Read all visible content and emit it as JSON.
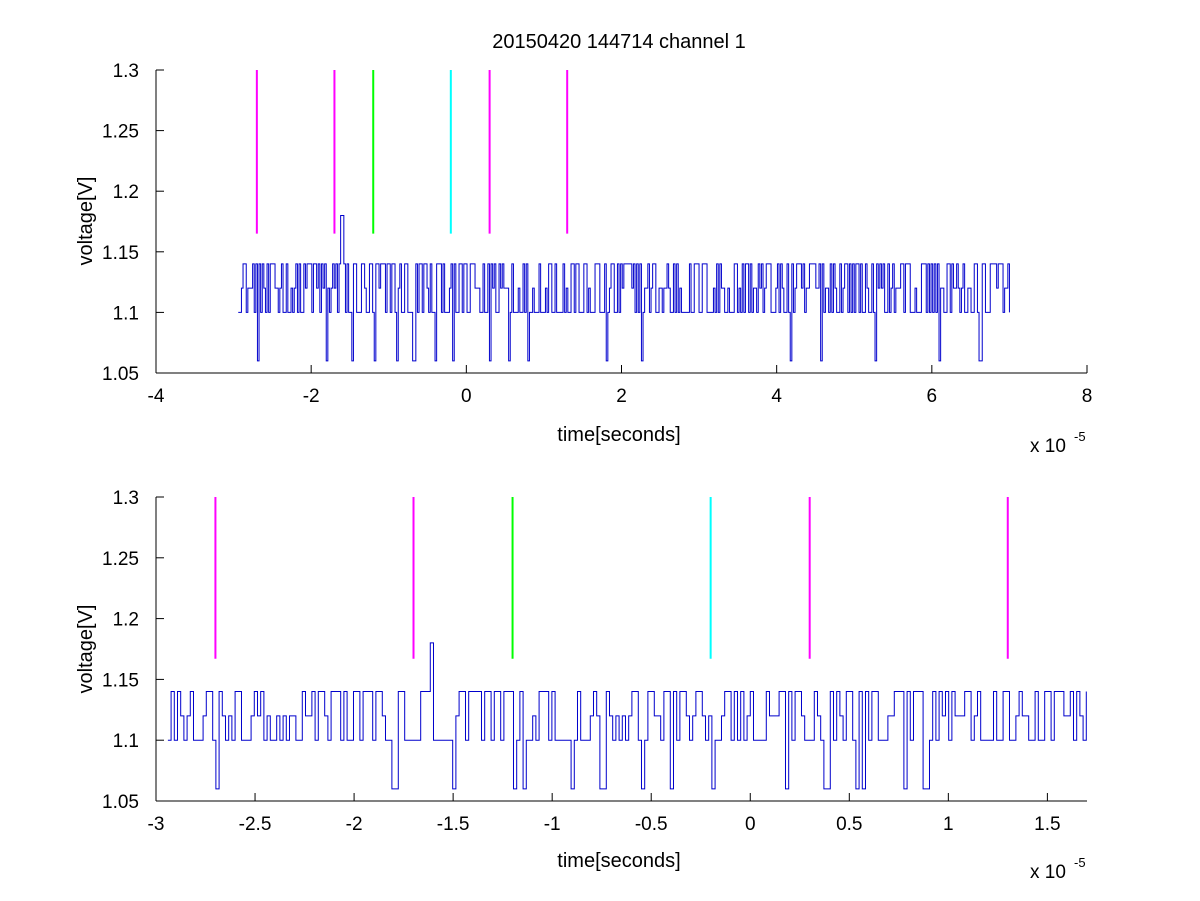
{
  "colors": {
    "background": "#ffffff",
    "signal": "#0000cc",
    "marker_magenta": "#ff00ff",
    "marker_green": "#00ff00",
    "marker_cyan": "#00ffff",
    "axes": "#000000"
  },
  "chart_data": [
    {
      "type": "line",
      "title": "20150420 144714 channel 1",
      "xlabel": "time[seconds]",
      "ylabel": "voltage[V]",
      "x_exponent_base": "x 10",
      "x_exponent_power": "-5",
      "xlim": [
        -4,
        8
      ],
      "ylim": [
        1.05,
        1.3
      ],
      "x_ticks": [
        -4,
        -2,
        0,
        2,
        4,
        6,
        8
      ],
      "x_tick_labels": [
        "-4",
        "-2",
        "0",
        "2",
        "4",
        "6",
        "8"
      ],
      "y_ticks": [
        1.05,
        1.1,
        1.15,
        1.2,
        1.25,
        1.3
      ],
      "y_tick_labels": [
        "1.05",
        "1.1",
        "1.15",
        "1.2",
        "1.25",
        "1.3"
      ],
      "grid": false,
      "series": [
        {
          "kind": "noisy-signal",
          "color": "#0000cc",
          "x_range": [
            -2.94,
            7.02
          ],
          "baseline": 1.1,
          "levels": [
            1.06,
            1.1,
            1.12,
            1.14
          ],
          "spike": {
            "x": -1.61,
            "y": 1.18
          },
          "dip_x": [
            -2.7,
            -1.8,
            -1.48,
            -1.18,
            -0.9,
            -0.68,
            -0.4,
            -0.18,
            0.3,
            0.55,
            0.8,
            1.8,
            2.25,
            4.17,
            4.57,
            5.27,
            6.1,
            6.62
          ]
        }
      ],
      "markers": [
        {
          "x": -2.7,
          "y": [
            1.165,
            1.3
          ],
          "color": "#ff00ff"
        },
        {
          "x": -1.7,
          "y": [
            1.165,
            1.3
          ],
          "color": "#ff00ff"
        },
        {
          "x": -1.2,
          "y": [
            1.165,
            1.3
          ],
          "color": "#00ff00"
        },
        {
          "x": -0.2,
          "y": [
            1.165,
            1.3
          ],
          "color": "#00ffff"
        },
        {
          "x": 0.3,
          "y": [
            1.165,
            1.3
          ],
          "color": "#ff00ff"
        },
        {
          "x": 1.3,
          "y": [
            1.165,
            1.3
          ],
          "color": "#ff00ff"
        }
      ]
    },
    {
      "type": "line",
      "title": "",
      "xlabel": "time[seconds]",
      "ylabel": "voltage[V]",
      "x_exponent_base": "x 10",
      "x_exponent_power": "-5",
      "xlim": [
        -3.0,
        1.7
      ],
      "ylim": [
        1.05,
        1.3
      ],
      "x_ticks": [
        -3,
        -2.5,
        -2,
        -1.5,
        -1,
        -0.5,
        0,
        0.5,
        1,
        1.5
      ],
      "x_tick_labels": [
        "-3",
        "-2.5",
        "-2",
        "-1.5",
        "-1",
        "-0.5",
        "0",
        "0.5",
        "1",
        "1.5"
      ],
      "y_ticks": [
        1.05,
        1.1,
        1.15,
        1.2,
        1.25,
        1.3
      ],
      "y_tick_labels": [
        "1.05",
        "1.1",
        "1.15",
        "1.2",
        "1.25",
        "1.3"
      ],
      "grid": false,
      "series": [
        {
          "kind": "noisy-signal",
          "color": "#0000cc",
          "x_range": [
            -2.94,
            1.7
          ],
          "baseline": 1.1,
          "levels": [
            1.06,
            1.1,
            1.12,
            1.14
          ],
          "spike": {
            "x": -1.61,
            "y": 1.18
          },
          "dip_x": [
            -2.7,
            -1.8,
            -1.5,
            -1.2,
            -1.15,
            -0.9,
            -0.75,
            -0.55,
            -0.4,
            -0.2,
            0.18,
            0.38,
            0.53,
            0.57,
            0.78,
            0.88
          ]
        }
      ],
      "markers": [
        {
          "x": -2.7,
          "y": [
            1.167,
            1.3
          ],
          "color": "#ff00ff"
        },
        {
          "x": -1.7,
          "y": [
            1.167,
            1.3
          ],
          "color": "#ff00ff"
        },
        {
          "x": -1.2,
          "y": [
            1.167,
            1.3
          ],
          "color": "#00ff00"
        },
        {
          "x": -0.2,
          "y": [
            1.167,
            1.3
          ],
          "color": "#00ffff"
        },
        {
          "x": 0.3,
          "y": [
            1.167,
            1.3
          ],
          "color": "#ff00ff"
        },
        {
          "x": 1.3,
          "y": [
            1.167,
            1.3
          ],
          "color": "#ff00ff"
        }
      ]
    }
  ]
}
